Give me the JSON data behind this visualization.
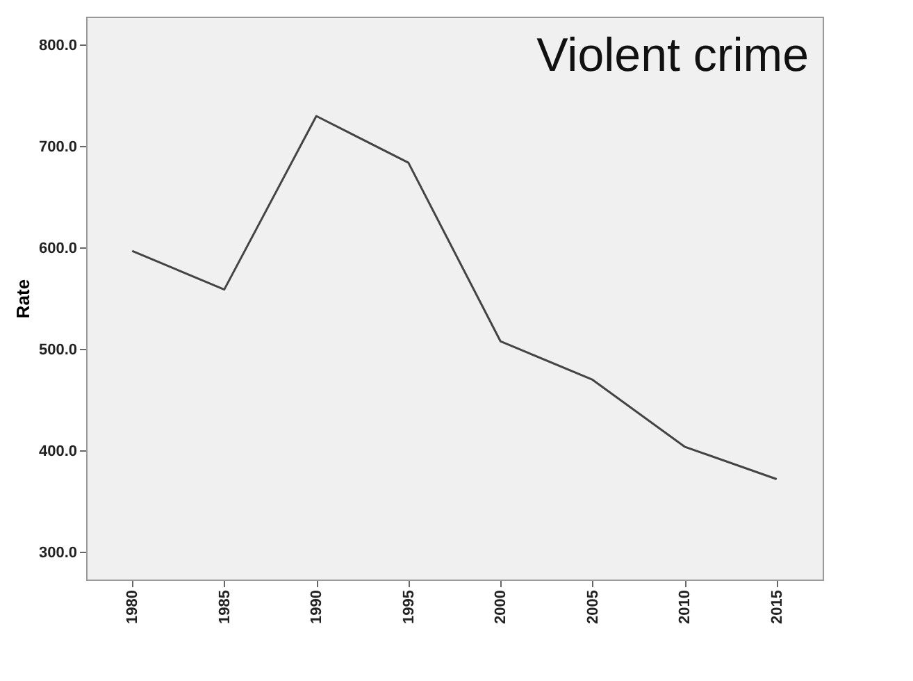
{
  "chart_data": {
    "type": "line",
    "title": "Violent crime",
    "ylabel": "Rate",
    "categories": [
      "1980",
      "1985",
      "1990",
      "1995",
      "2000",
      "2005",
      "2010",
      "2015"
    ],
    "series": [
      {
        "color": "#444444",
        "values": [
          597,
          559,
          730,
          684,
          508,
          470,
          404,
          372
        ]
      }
    ],
    "ylim": [
      273,
      828
    ],
    "yticks": [
      {
        "value": 300,
        "label": "300.0"
      },
      {
        "value": 400,
        "label": "400.0"
      },
      {
        "value": 500,
        "label": "500.0"
      },
      {
        "value": 600,
        "label": "600.0"
      },
      {
        "value": 700,
        "label": "700.0"
      },
      {
        "value": 800,
        "label": "800.0"
      }
    ],
    "grid": false,
    "marker": "none",
    "line_style": "solid"
  }
}
